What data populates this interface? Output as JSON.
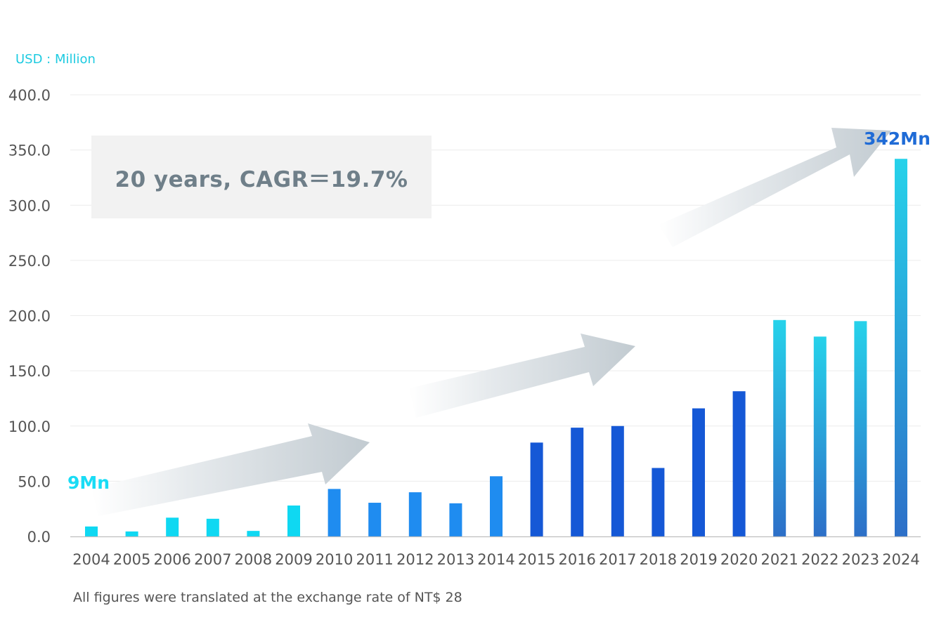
{
  "unit_label": "USD : Million",
  "footnote": "All figures were translated at the exchange rate of NT$ 28",
  "cagr_text": "20 years, CAGR＝19.7%",
  "callouts": {
    "start": "9Mn",
    "end": "342Mn"
  },
  "colors": {
    "cyan": "#0fd8f2",
    "mid_blue": "#1f8cf0",
    "dark_blue": "#1558d6",
    "gradient_top": "#26d2ea",
    "gradient_bottom": "#2d6fc8",
    "arrow": "#c8d0d6"
  },
  "chart_data": {
    "type": "bar",
    "categories": [
      "2004",
      "2005",
      "2006",
      "2007",
      "2008",
      "2009",
      "2010",
      "2011",
      "2012",
      "2013",
      "2014",
      "2015",
      "2016",
      "2017",
      "2018",
      "2019",
      "2020",
      "2021",
      "2022",
      "2023",
      "2024"
    ],
    "values": [
      9,
      4.5,
      17,
      16,
      5,
      28,
      43,
      30.5,
      40,
      30,
      54.5,
      85,
      98.5,
      100,
      62,
      116,
      131.5,
      196,
      181,
      195,
      342
    ],
    "bar_styles": [
      "cyan",
      "cyan",
      "cyan",
      "cyan",
      "cyan",
      "cyan",
      "mid",
      "mid",
      "mid",
      "mid",
      "mid",
      "dark",
      "dark",
      "dark",
      "dark",
      "dark",
      "dark",
      "gradient",
      "gradient",
      "gradient",
      "gradient"
    ],
    "ylim": [
      0,
      400
    ],
    "yticks": [
      "0.0",
      "50.0",
      "100.0",
      "150.0",
      "200.0",
      "250.0",
      "300.0",
      "350.0",
      "400.0"
    ],
    "ytick_values": [
      0,
      50,
      100,
      150,
      200,
      250,
      300,
      350,
      400
    ],
    "grid": true,
    "legend": "none",
    "title": "",
    "xlabel": "",
    "ylabel": ""
  }
}
